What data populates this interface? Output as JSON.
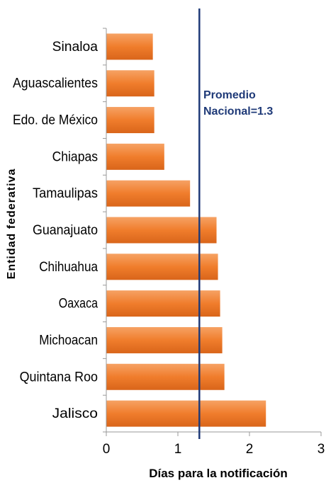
{
  "chart_data": {
    "type": "bar",
    "orientation": "horizontal",
    "categories": [
      "Sinaloa",
      "Aguascalientes",
      "Edo. de México",
      "Chiapas",
      "Tamaulipas",
      "Guanajuato",
      "Chihuahua",
      "Oaxaca",
      "Michoacan",
      "Quintana Roo",
      "Jalisco"
    ],
    "values": [
      0.65,
      0.67,
      0.67,
      0.81,
      1.17,
      1.54,
      1.56,
      1.59,
      1.62,
      1.65,
      2.23
    ],
    "xlabel": "Días para la notificación",
    "ylabel": "Entidad federativa",
    "xlim": [
      0,
      3
    ],
    "xticks": [
      "0",
      "1",
      "2",
      "3"
    ],
    "reference_line": {
      "value": 1.3,
      "label_line1": "Promedio",
      "label_line2": "Nacional=1.3",
      "color": "#1f3a78"
    },
    "bar_color": "#f07d2c",
    "grid": false,
    "legend": "none"
  }
}
